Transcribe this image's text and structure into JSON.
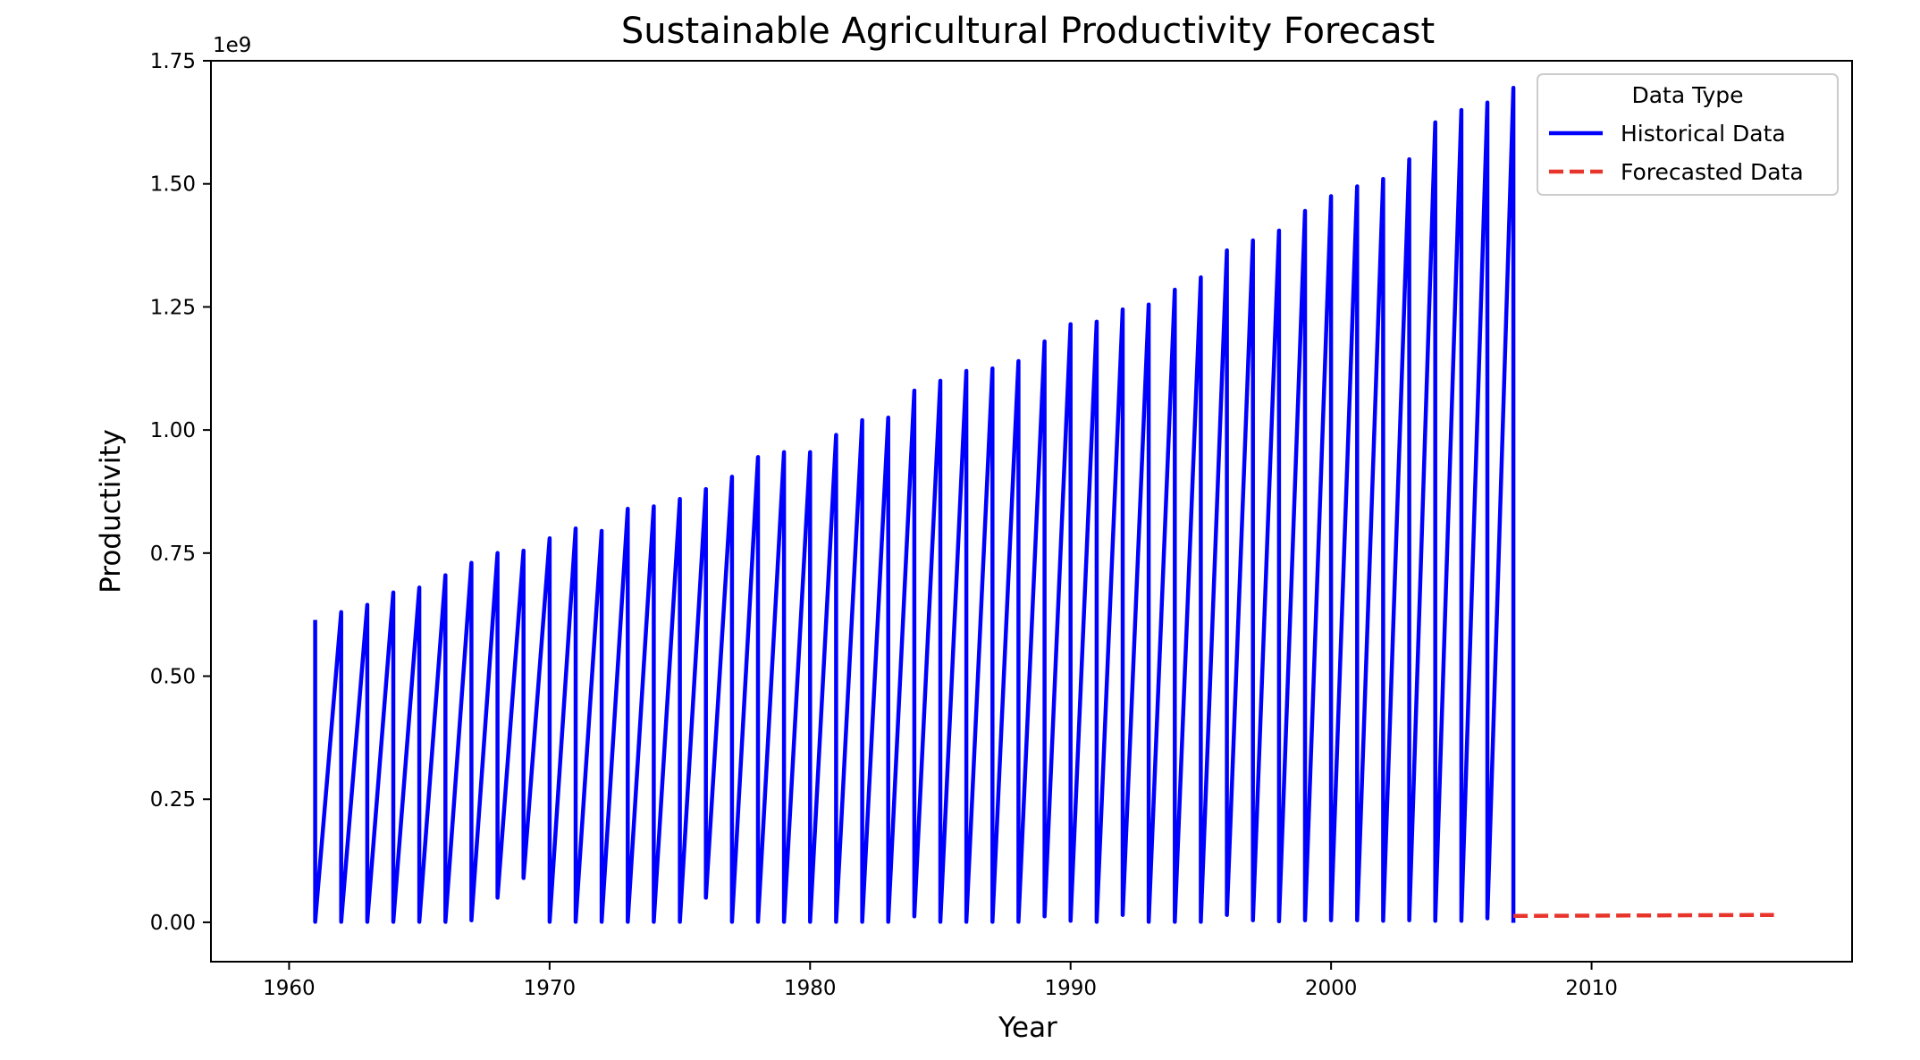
{
  "chart_data": {
    "type": "line",
    "title": "Sustainable Agricultural Productivity Forecast",
    "xlabel": "Year",
    "ylabel": "Productivity",
    "y_offset_label": "1e9",
    "y_scale": 1000000000,
    "xlim": [
      1957,
      2020
    ],
    "ylim": [
      -0.08,
      1.75
    ],
    "x_ticks": [
      1960,
      1970,
      1980,
      1990,
      2000,
      2010
    ],
    "x_tick_labels": [
      "1960",
      "1970",
      "1980",
      "1990",
      "2000",
      "2010"
    ],
    "y_ticks": [
      0,
      0.25,
      0.5,
      0.75,
      1.0,
      1.25,
      1.5,
      1.75
    ],
    "y_tick_labels": [
      "0.00",
      "0.25",
      "0.50",
      "0.75",
      "1.00",
      "1.25",
      "1.50",
      "1.75"
    ],
    "grid": false,
    "legend": {
      "title": "Data Type",
      "placement": "top-right",
      "entries": [
        {
          "label": "Historical Data",
          "color": "#0000ff",
          "style": "solid"
        },
        {
          "label": "Forecasted Data",
          "color": "#e8352b",
          "style": "dashed"
        }
      ]
    },
    "series": [
      {
        "name": "Historical Data",
        "color": "#0000ff",
        "style": "solid",
        "years": [
          1961,
          1962,
          1963,
          1964,
          1965,
          1966,
          1967,
          1968,
          1969,
          1970,
          1971,
          1972,
          1973,
          1974,
          1975,
          1976,
          1977,
          1978,
          1979,
          1980,
          1981,
          1982,
          1983,
          1984,
          1985,
          1986,
          1987,
          1988,
          1989,
          1990,
          1991,
          1992,
          1993,
          1994,
          1995,
          1996,
          1997,
          1998,
          1999,
          2000,
          2001,
          2002,
          2003,
          2004,
          2005,
          2006,
          2007
        ],
        "peaks": [
          0.61,
          0.63,
          0.645,
          0.67,
          0.68,
          0.705,
          0.73,
          0.75,
          0.755,
          0.78,
          0.8,
          0.795,
          0.84,
          0.845,
          0.86,
          0.88,
          0.905,
          0.945,
          0.955,
          0.955,
          0.99,
          1.02,
          1.025,
          1.08,
          1.1,
          1.12,
          1.125,
          1.14,
          1.18,
          1.215,
          1.22,
          1.245,
          1.255,
          1.285,
          1.31,
          1.365,
          1.385,
          1.405,
          1.445,
          1.475,
          1.495,
          1.51,
          1.55,
          1.625,
          1.65,
          1.665,
          1.695
        ],
        "lows": [
          0.001,
          0.001,
          0.001,
          0.001,
          0.001,
          0.001,
          0.004,
          0.05,
          0.09,
          0.001,
          0.001,
          0.001,
          0.001,
          0.001,
          0.001,
          0.05,
          0.001,
          0.001,
          0.001,
          0.001,
          0.001,
          0.001,
          0.001,
          0.012,
          0.001,
          0.001,
          0.001,
          0.001,
          0.012,
          0.003,
          0.001,
          0.015,
          0.001,
          0.001,
          0.001,
          0.015,
          0.004,
          0.002,
          0.004,
          0.004,
          0.004,
          0.003,
          0.004,
          0.003,
          0.003,
          0.008,
          0.003
        ]
      },
      {
        "name": "Forecasted Data",
        "color": "#e8352b",
        "style": "dashed",
        "x": [
          2007,
          2017
        ],
        "values": [
          0.013,
          0.015
        ]
      }
    ]
  }
}
